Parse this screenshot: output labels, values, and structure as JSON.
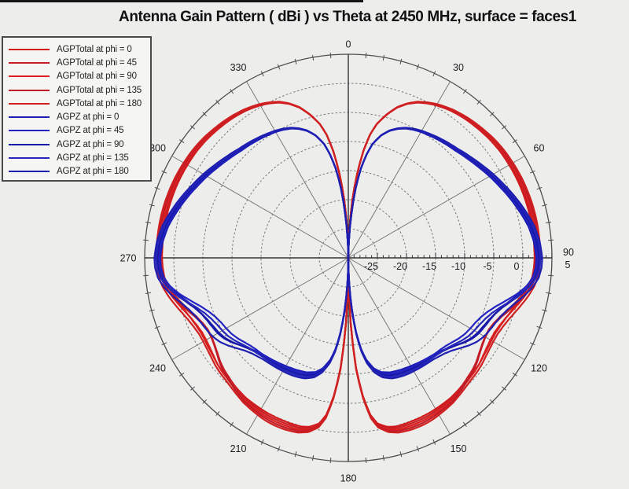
{
  "page": {
    "background": "#edeeec",
    "top_bar_color": "#141414"
  },
  "colors": {
    "agptotal_red": "#d21c1c",
    "agpz_blue": "#1c1cb4",
    "grid": "#787878",
    "outer_ring": "#4d4d4d",
    "axis": "#333333",
    "text": "#1c1c1c",
    "legend_border": "#4a4a4a",
    "legend_background": "#f5f5f3"
  },
  "chart_data": {
    "type": "polar",
    "title": "Antenna Gain Pattern ( dBi )  vs Theta at 2450 MHz, surface = faces1",
    "angle": {
      "unit": "deg",
      "zero_position": "top",
      "direction": "clockwise",
      "major_tick_labels": [
        "0",
        "30",
        "60",
        "90",
        "120",
        "150",
        "180",
        "210",
        "240",
        "270",
        "300",
        "330"
      ],
      "major_tick_step": 30,
      "minor_tick_step": 5,
      "right_angle_label": "90"
    },
    "r_axis": {
      "min": -30,
      "max": 5,
      "ring_step": 5,
      "tick_step_db": 1,
      "axis_labels": [
        "-25",
        "-20",
        "-15",
        "-10",
        "-5",
        "0"
      ],
      "axis_label_values": [
        -25,
        -20,
        -15,
        -10,
        -5,
        0
      ],
      "outer_value_label": "5"
    },
    "symmetry": "pattern mirrored about the 0-180 degree axis",
    "base_patterns": {
      "AGPTotal": [
        [
          0,
          -30
        ],
        [
          2,
          -26
        ],
        [
          4,
          -20
        ],
        [
          6,
          -15.5
        ],
        [
          8,
          -11.5
        ],
        [
          10,
          -8.5
        ],
        [
          12,
          -6.5
        ],
        [
          15,
          -4.5
        ],
        [
          18,
          -2.8
        ],
        [
          21,
          -1.6
        ],
        [
          24,
          -0.7
        ],
        [
          27,
          -0.1
        ],
        [
          30,
          0.4
        ],
        [
          35,
          1.0
        ],
        [
          40,
          1.4
        ],
        [
          45,
          1.7
        ],
        [
          50,
          2.0
        ],
        [
          55,
          2.2
        ],
        [
          60,
          2.3
        ],
        [
          65,
          2.4
        ],
        [
          70,
          2.45
        ],
        [
          75,
          2.5
        ],
        [
          80,
          2.5
        ],
        [
          85,
          2.5
        ],
        [
          90,
          2.5
        ],
        [
          93,
          2.4
        ],
        [
          96,
          2.2
        ],
        [
          99,
          1.7
        ],
        [
          102,
          1.0
        ],
        [
          105,
          0.2
        ],
        [
          108,
          -0.6
        ],
        [
          111,
          -1.3
        ],
        [
          114,
          -1.8
        ],
        [
          117,
          -2.1
        ],
        [
          120,
          -2.1
        ],
        [
          123,
          -1.9
        ],
        [
          126,
          -1.6
        ],
        [
          129,
          -1.2
        ],
        [
          132,
          -0.9
        ],
        [
          135,
          -0.7
        ],
        [
          138,
          -0.4
        ],
        [
          141,
          -0.1
        ],
        [
          144,
          0.2
        ],
        [
          148,
          0.4
        ],
        [
          152,
          0.6
        ],
        [
          156,
          0.7
        ],
        [
          160,
          0.7
        ],
        [
          164,
          0.6
        ],
        [
          167,
          0.2
        ],
        [
          170,
          -0.8
        ],
        [
          172,
          -2.5
        ],
        [
          174,
          -6.0
        ],
        [
          176,
          -11.0
        ],
        [
          178,
          -19.0
        ],
        [
          180,
          -30
        ]
      ],
      "AGPZ": [
        [
          0,
          -30
        ],
        [
          2,
          -27
        ],
        [
          4,
          -22.5
        ],
        [
          6,
          -18
        ],
        [
          8,
          -14.5
        ],
        [
          10,
          -12
        ],
        [
          12,
          -10
        ],
        [
          15,
          -8.2
        ],
        [
          18,
          -7.0
        ],
        [
          21,
          -6.2
        ],
        [
          24,
          -5.6
        ],
        [
          27,
          -5.2
        ],
        [
          30,
          -4.9
        ],
        [
          35,
          -4.5
        ],
        [
          40,
          -4.1
        ],
        [
          45,
          -3.7
        ],
        [
          50,
          -3.1
        ],
        [
          55,
          -2.4
        ],
        [
          60,
          -1.6
        ],
        [
          65,
          -0.8
        ],
        [
          70,
          0.1
        ],
        [
          75,
          1.0
        ],
        [
          80,
          1.9
        ],
        [
          85,
          2.5
        ],
        [
          90,
          2.8
        ],
        [
          93,
          2.7
        ],
        [
          96,
          2.3
        ],
        [
          99,
          1.4
        ],
        [
          102,
          0.2
        ],
        [
          105,
          -1.2
        ],
        [
          108,
          -2.4
        ],
        [
          111,
          -3.3
        ],
        [
          114,
          -3.9
        ],
        [
          117,
          -4.3
        ],
        [
          120,
          -4.6
        ],
        [
          123,
          -5.0
        ],
        [
          126,
          -5.6
        ],
        [
          129,
          -6.3
        ],
        [
          132,
          -6.9
        ],
        [
          135,
          -7.3
        ],
        [
          140,
          -7.7
        ],
        [
          145,
          -7.9
        ],
        [
          150,
          -8.1
        ],
        [
          155,
          -8.3
        ],
        [
          160,
          -8.6
        ],
        [
          164,
          -9.2
        ],
        [
          167,
          -10.2
        ],
        [
          170,
          -12.0
        ],
        [
          172,
          -14.0
        ],
        [
          174,
          -17.0
        ],
        [
          176,
          -21.0
        ],
        [
          178,
          -25.5
        ],
        [
          180,
          -30
        ]
      ]
    },
    "series": [
      {
        "name": "AGPTotal at phi = 0",
        "family": "AGPTotal",
        "phi": 0,
        "color": "#d31b1b",
        "offset_db": -0.5,
        "shoulder_db": 0.9,
        "lower_db": -0.5
      },
      {
        "name": "AGPTotal at phi = 45",
        "family": "AGPTotal",
        "phi": 45,
        "color": "#c81e26",
        "offset_db": -0.25,
        "shoulder_db": -0.6,
        "lower_db": -0.2
      },
      {
        "name": "AGPTotal at phi = 90",
        "family": "AGPTotal",
        "phi": 90,
        "color": "#dc1f1f",
        "offset_db": 0.0,
        "shoulder_db": 0.3,
        "lower_db": 0.1
      },
      {
        "name": "AGPTotal at phi = 135",
        "family": "AGPTotal",
        "phi": 135,
        "color": "#bf1c28",
        "offset_db": 0.25,
        "shoulder_db": -0.9,
        "lower_db": 0.4
      },
      {
        "name": "AGPTotal at phi = 180",
        "family": "AGPTotal",
        "phi": 180,
        "color": "#d02020",
        "offset_db": 0.5,
        "shoulder_db": 0.5,
        "lower_db": 0.7
      },
      {
        "name": "AGPZ at phi = 0",
        "family": "AGPZ",
        "phi": 0,
        "color": "#1b1bb5",
        "offset_db": -0.5,
        "shoulder_db": 0.9,
        "lower_db": -0.4
      },
      {
        "name": "AGPZ at phi = 45",
        "family": "AGPZ",
        "phi": 45,
        "color": "#2323c2",
        "offset_db": -0.25,
        "shoulder_db": -1.0,
        "lower_db": -0.15
      },
      {
        "name": "AGPZ at phi = 90",
        "family": "AGPZ",
        "phi": 90,
        "color": "#1717a6",
        "offset_db": 0.0,
        "shoulder_db": 0.3,
        "lower_db": 0.1
      },
      {
        "name": "AGPZ at phi = 135",
        "family": "AGPZ",
        "phi": 135,
        "color": "#2626bb",
        "offset_db": 0.25,
        "shoulder_db": -0.6,
        "lower_db": 0.35
      },
      {
        "name": "AGPZ at phi = 180",
        "family": "AGPZ",
        "phi": 180,
        "color": "#1e1eb0",
        "offset_db": 0.5,
        "shoulder_db": 1.2,
        "lower_db": 0.6
      }
    ]
  }
}
